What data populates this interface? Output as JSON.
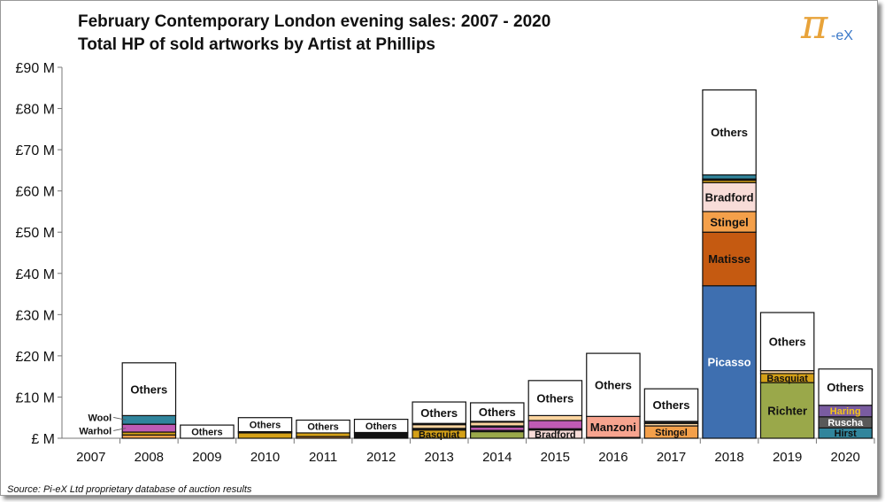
{
  "title_line1": "February Contemporary London evening sales: 2007 - 2020",
  "title_line2": "Total HP of sold artworks by Artist at Phillips",
  "logo": {
    "symbol": "π",
    "text": "-eX"
  },
  "source": "Source:  Pi-eX Ltd proprietary database of auction results",
  "chart_data": {
    "type": "bar",
    "stacked": true,
    "title": "February Contemporary London evening sales: 2007 - 2020 — Total HP of sold artworks by Artist at Phillips",
    "xlabel": "",
    "ylabel": "",
    "ylim": [
      0,
      90
    ],
    "yticks": [
      "£ M",
      "£10 M",
      "£20 M",
      "£30 M",
      "£40 M",
      "£50 M",
      "£60 M",
      "£70 M",
      "£80 M",
      "£90 M"
    ],
    "grid": false,
    "categories": [
      "2007",
      "2008",
      "2009",
      "2010",
      "2011",
      "2012",
      "2013",
      "2014",
      "2015",
      "2016",
      "2017",
      "2018",
      "2019",
      "2020"
    ],
    "stacks": [
      [],
      [
        {
          "name": "",
          "value": 0.8,
          "color": "#f4a04a"
        },
        {
          "name": "",
          "value": 0.7,
          "color": "#d4a017"
        },
        {
          "name": "Warhol",
          "value": 1.9,
          "color": "#c05bb5",
          "label": true
        },
        {
          "name": "Wool",
          "value": 2.1,
          "color": "#31859c",
          "label": true
        },
        {
          "name": "Others",
          "value": 12.8,
          "color": "#ffffff",
          "label": true
        }
      ],
      [
        {
          "name": "Others",
          "value": 3.2,
          "color": "#ffffff",
          "label": true
        }
      ],
      [
        {
          "name": "",
          "value": 1.3,
          "color": "#d4a017"
        },
        {
          "name": "",
          "value": 0.3,
          "color": "#222222"
        },
        {
          "name": "Others",
          "value": 3.4,
          "color": "#ffffff",
          "label": true
        }
      ],
      [
        {
          "name": "",
          "value": 0.4,
          "color": "#f4a04a"
        },
        {
          "name": "",
          "value": 0.9,
          "color": "#d4a017"
        },
        {
          "name": "Others",
          "value": 3.1,
          "color": "#ffffff",
          "label": true
        }
      ],
      [
        {
          "name": "",
          "value": 1.4,
          "color": "#111111"
        },
        {
          "name": "Others",
          "value": 3.2,
          "color": "#ffffff",
          "label": true
        }
      ],
      [
        {
          "name": "Basquiat",
          "value": 2.0,
          "color": "#d4a017",
          "label": true
        },
        {
          "name": "",
          "value": 0.4,
          "color": "#222222"
        },
        {
          "name": "",
          "value": 0.9,
          "color": "#fcd5a0"
        },
        {
          "name": "",
          "value": 0.3,
          "color": "#333333"
        },
        {
          "name": "Others",
          "value": 5.2,
          "color": "#ffffff",
          "label": true
        }
      ],
      [
        {
          "name": "",
          "value": 1.6,
          "color": "#9aa84a"
        },
        {
          "name": "",
          "value": 0.3,
          "color": "#222222"
        },
        {
          "name": "",
          "value": 0.8,
          "color": "#c05bb5"
        },
        {
          "name": "",
          "value": 0.3,
          "color": "#31859c"
        },
        {
          "name": "",
          "value": 0.9,
          "color": "#fcd5a0"
        },
        {
          "name": "",
          "value": 0.2,
          "color": "#222222"
        },
        {
          "name": "Others",
          "value": 4.5,
          "color": "#ffffff",
          "label": true
        }
      ],
      [
        {
          "name": "Bradford",
          "value": 2.0,
          "color": "#f8dcd8",
          "label": true
        },
        {
          "name": "",
          "value": 0.3,
          "color": "#222222"
        },
        {
          "name": "",
          "value": 2.0,
          "color": "#c05bb5"
        },
        {
          "name": "",
          "value": 1.2,
          "color": "#fcd5a0"
        },
        {
          "name": "Others",
          "value": 8.5,
          "color": "#ffffff",
          "label": true
        }
      ],
      [
        {
          "name": "",
          "value": 0.2,
          "color": "#31859c"
        },
        {
          "name": "Manzoni",
          "value": 5.1,
          "color": "#f7a48f",
          "label": true
        },
        {
          "name": "Others",
          "value": 15.3,
          "color": "#ffffff",
          "label": true
        }
      ],
      [
        {
          "name": "Stingel",
          "value": 3.0,
          "color": "#f4a04a",
          "label": true
        },
        {
          "name": "",
          "value": 0.6,
          "color": "#fcd5a0"
        },
        {
          "name": "",
          "value": 0.5,
          "color": "#222222"
        },
        {
          "name": "Others",
          "value": 7.9,
          "color": "#ffffff",
          "label": true
        }
      ],
      [
        {
          "name": "Picasso",
          "value": 37.0,
          "color": "#3e6fb0",
          "label": true,
          "labelColor": "#ffffff"
        },
        {
          "name": "Matisse",
          "value": 13.0,
          "color": "#c55a11",
          "label": true
        },
        {
          "name": "Stingel",
          "value": 5.0,
          "color": "#f4a04a",
          "label": true
        },
        {
          "name": "Bradford",
          "value": 7.0,
          "color": "#f8dcd8",
          "label": true
        },
        {
          "name": "",
          "value": 0.6,
          "color": "#d4a017"
        },
        {
          "name": "",
          "value": 0.3,
          "color": "#222222"
        },
        {
          "name": "",
          "value": 1.0,
          "color": "#31859c"
        },
        {
          "name": "Others",
          "value": 20.6,
          "color": "#ffffff",
          "label": true
        }
      ],
      [
        {
          "name": "Richter",
          "value": 13.5,
          "color": "#9aa84a",
          "label": true
        },
        {
          "name": "Basquiat",
          "value": 2.2,
          "color": "#d4a017",
          "label": true
        },
        {
          "name": "",
          "value": 0.7,
          "color": "#fcd5a0"
        },
        {
          "name": "Others",
          "value": 14.1,
          "color": "#ffffff",
          "label": true
        }
      ],
      [
        {
          "name": "Hirst",
          "value": 2.5,
          "color": "#31859c",
          "label": true
        },
        {
          "name": "Ruscha",
          "value": 2.7,
          "color": "#595959",
          "label": true,
          "labelColor": "#ffffff"
        },
        {
          "name": "Haring",
          "value": 2.8,
          "color": "#7a5ca0",
          "label": true,
          "labelColor": "#f5c518"
        },
        {
          "name": "Others",
          "value": 8.8,
          "color": "#ffffff",
          "label": true
        }
      ]
    ]
  }
}
